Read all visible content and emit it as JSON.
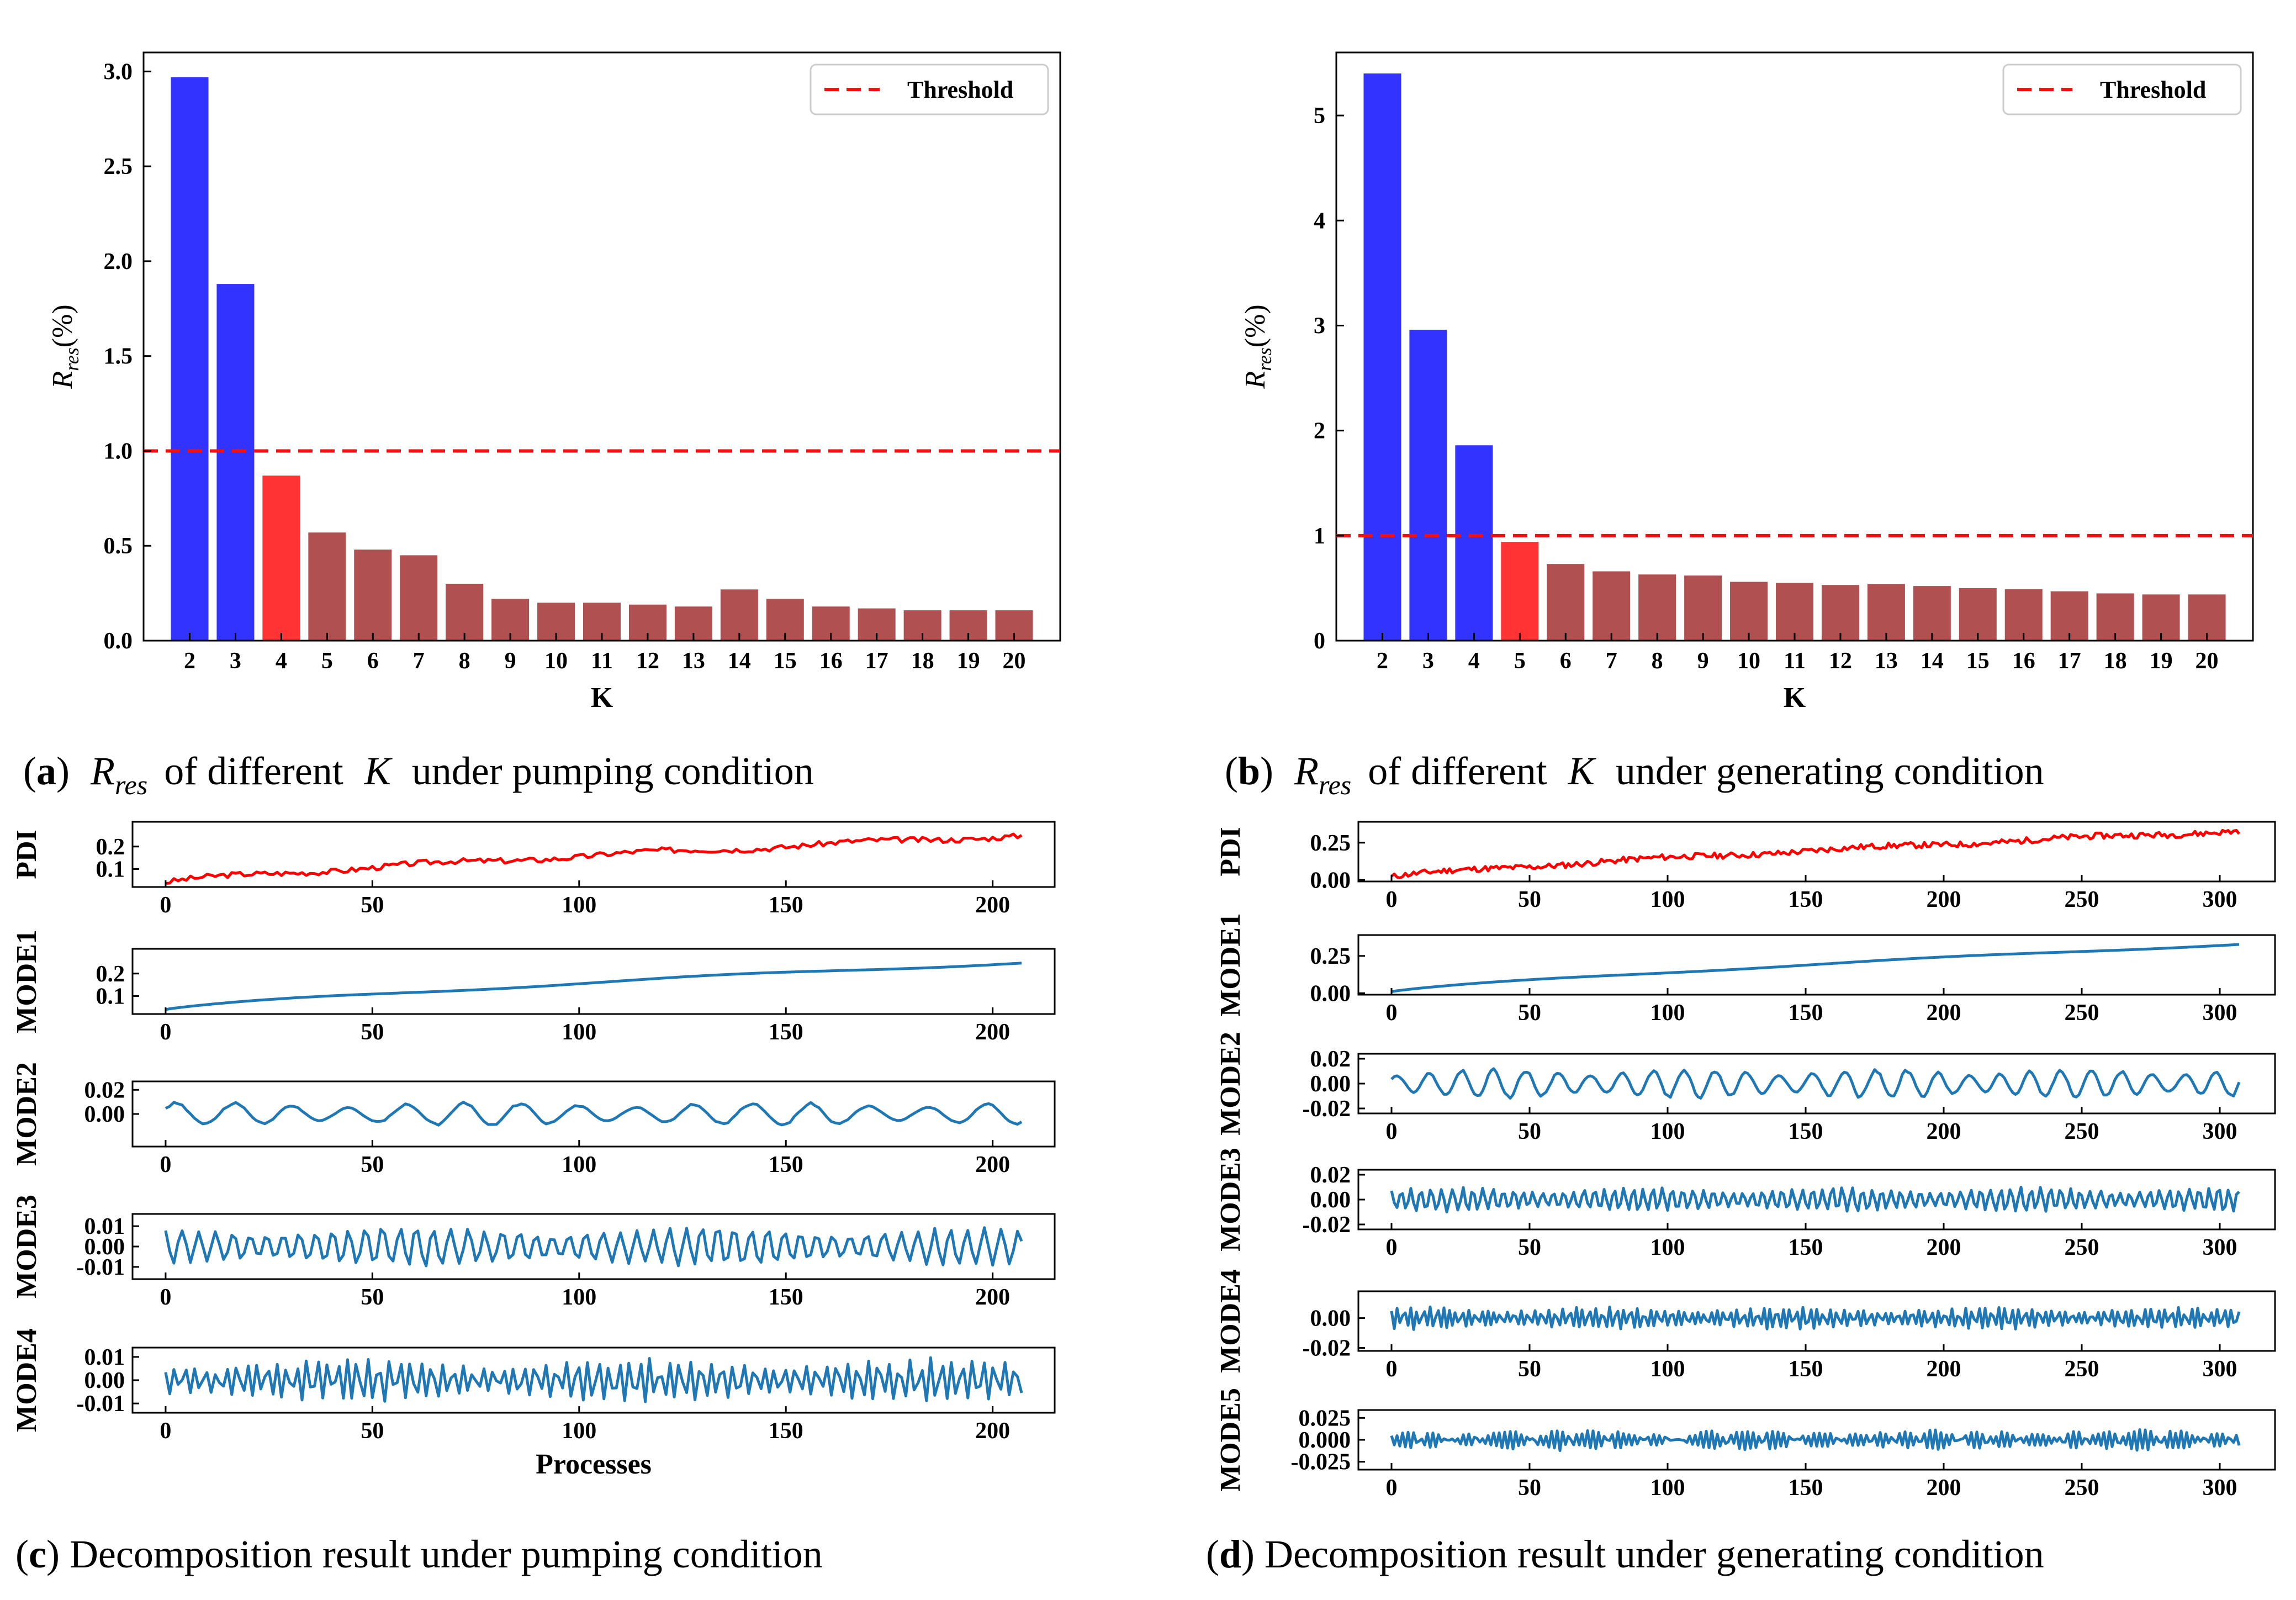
{
  "captions": {
    "a": {
      "label": "a",
      "text": "of different",
      "var1": "R",
      "var1_sub": "res",
      "var2": "K",
      "tail": "under pumping condition"
    },
    "b": {
      "label": "b",
      "text": "of different",
      "var1": "R",
      "var1_sub": "res",
      "var2": "K",
      "tail": "under generating condition"
    },
    "c": {
      "label": "c",
      "text": "Decomposition result under pumping condition"
    },
    "d": {
      "label": "d",
      "text": "Decomposition result under generating condition"
    }
  },
  "colors": {
    "blue": "#3333ff",
    "red": "#ff3333",
    "brown": "#b05050",
    "threshold": "#ee1111",
    "pdi": "#ff0000",
    "mode": "#1f77b4"
  },
  "chart_data": [
    {
      "id": "a",
      "type": "bar",
      "categories": [
        "2",
        "3",
        "4",
        "5",
        "6",
        "7",
        "8",
        "9",
        "10",
        "11",
        "12",
        "13",
        "14",
        "15",
        "16",
        "17",
        "18",
        "19",
        "20"
      ],
      "values": [
        2.97,
        1.88,
        0.87,
        0.57,
        0.48,
        0.45,
        0.3,
        0.22,
        0.2,
        0.2,
        0.19,
        0.18,
        0.27,
        0.22,
        0.18,
        0.17,
        0.16,
        0.16,
        0.16
      ],
      "bar_colors": [
        "blue",
        "blue",
        "red",
        "brown",
        "brown",
        "brown",
        "brown",
        "brown",
        "brown",
        "brown",
        "brown",
        "brown",
        "brown",
        "brown",
        "brown",
        "brown",
        "brown",
        "brown",
        "brown"
      ],
      "threshold": 1.0,
      "legend": "Threshold",
      "legend_position": "top-right",
      "xlabel": "K",
      "ylabel": "R",
      "ylabel_sub": "res",
      "ylabel_unit": "(%)",
      "ylim": [
        0,
        3.1
      ],
      "yticks": [
        "0.0",
        "0.5",
        "1.0",
        "1.5",
        "2.0",
        "2.5",
        "3.0"
      ]
    },
    {
      "id": "b",
      "type": "bar",
      "categories": [
        "2",
        "3",
        "4",
        "5",
        "6",
        "7",
        "8",
        "9",
        "10",
        "11",
        "12",
        "13",
        "14",
        "15",
        "16",
        "17",
        "18",
        "19",
        "20"
      ],
      "values": [
        5.4,
        2.96,
        1.86,
        0.94,
        0.73,
        0.66,
        0.63,
        0.62,
        0.56,
        0.55,
        0.53,
        0.54,
        0.52,
        0.5,
        0.49,
        0.47,
        0.45,
        0.44,
        0.44
      ],
      "bar_colors": [
        "blue",
        "blue",
        "blue",
        "red",
        "brown",
        "brown",
        "brown",
        "brown",
        "brown",
        "brown",
        "brown",
        "brown",
        "brown",
        "brown",
        "brown",
        "brown",
        "brown",
        "brown",
        "brown"
      ],
      "threshold": 1.0,
      "legend": "Threshold",
      "legend_position": "top-right",
      "xlabel": "K",
      "ylabel": "R",
      "ylabel_sub": "res",
      "ylabel_unit": "(%)",
      "ylim": [
        0,
        5.6
      ],
      "yticks": [
        "0",
        "1",
        "2",
        "3",
        "4",
        "5"
      ]
    },
    {
      "id": "c",
      "type": "line",
      "xlabel": "Processes",
      "x_range": [
        0,
        207
      ],
      "xlim": [
        -8,
        215
      ],
      "xticks": [
        "0",
        "50",
        "100",
        "150",
        "200"
      ],
      "series": [
        {
          "name": "PDI",
          "color_key": "pdi",
          "kind": "trend",
          "start": 0.04,
          "end": 0.25,
          "noise": 0.012,
          "ylim": [
            0.02,
            0.31
          ],
          "yticks": [
            "0.1",
            "0.2"
          ]
        },
        {
          "name": "MODE1",
          "color_key": "mode",
          "kind": "smooth",
          "start": 0.04,
          "end": 0.25,
          "noise": 0.0,
          "ylim": [
            0.02,
            0.31
          ],
          "yticks": [
            "0.1",
            "0.2"
          ]
        },
        {
          "name": "MODE2",
          "color_key": "mode",
          "kind": "osc",
          "amp": 0.009,
          "freq": 0.45,
          "ylim": [
            -0.027,
            0.027
          ],
          "yticks": [
            "0.00",
            "0.02"
          ]
        },
        {
          "name": "MODE3",
          "color_key": "mode",
          "kind": "osc",
          "amp": 0.009,
          "freq": 1.55,
          "ylim": [
            -0.016,
            0.016
          ],
          "yticks": [
            "-0.01",
            "0.00",
            "0.01"
          ]
        },
        {
          "name": "MODE4",
          "color_key": "mode",
          "kind": "osc",
          "amp": 0.009,
          "freq": 2.5,
          "ylim": [
            -0.014,
            0.014
          ],
          "yticks": [
            "-0.01",
            "0.00",
            "0.01"
          ]
        }
      ]
    },
    {
      "id": "d",
      "type": "line",
      "xlabel": "",
      "x_range": [
        0,
        307
      ],
      "xlim": [
        -12,
        320
      ],
      "xticks": [
        "0",
        "50",
        "100",
        "150",
        "200",
        "250",
        "300"
      ],
      "series": [
        {
          "name": "PDI",
          "color_key": "pdi",
          "kind": "trend",
          "start": 0.02,
          "end": 0.33,
          "noise": 0.02,
          "ylim": [
            -0.01,
            0.39
          ],
          "yticks": [
            "0.00",
            "0.25"
          ]
        },
        {
          "name": "MODE1",
          "color_key": "mode",
          "kind": "smooth",
          "start": 0.01,
          "end": 0.33,
          "noise": 0.0,
          "ylim": [
            -0.01,
            0.39
          ],
          "yticks": [
            "0.00",
            "0.25"
          ]
        },
        {
          "name": "MODE2",
          "color_key": "mode",
          "kind": "osc",
          "amp": 0.011,
          "freq": 0.55,
          "ylim": [
            -0.024,
            0.024
          ],
          "yticks": [
            "-0.02",
            "0.00",
            "0.02"
          ]
        },
        {
          "name": "MODE3",
          "color_key": "mode",
          "kind": "osc",
          "amp": 0.009,
          "freq": 1.75,
          "ylim": [
            -0.024,
            0.024
          ],
          "yticks": [
            "-0.02",
            "0.00",
            "0.02"
          ]
        },
        {
          "name": "MODE4",
          "color_key": "mode",
          "kind": "osc",
          "amp": 0.007,
          "freq": 2.6,
          "ylim": [
            -0.022,
            0.018
          ],
          "yticks": [
            "-0.02",
            "0.00"
          ]
        },
        {
          "name": "MODE5",
          "color_key": "mode",
          "kind": "osc",
          "amp": 0.011,
          "freq": 2.9,
          "ylim": [
            -0.034,
            0.034
          ],
          "yticks": [
            "-0.025",
            "0.000",
            "0.025"
          ]
        }
      ]
    }
  ]
}
